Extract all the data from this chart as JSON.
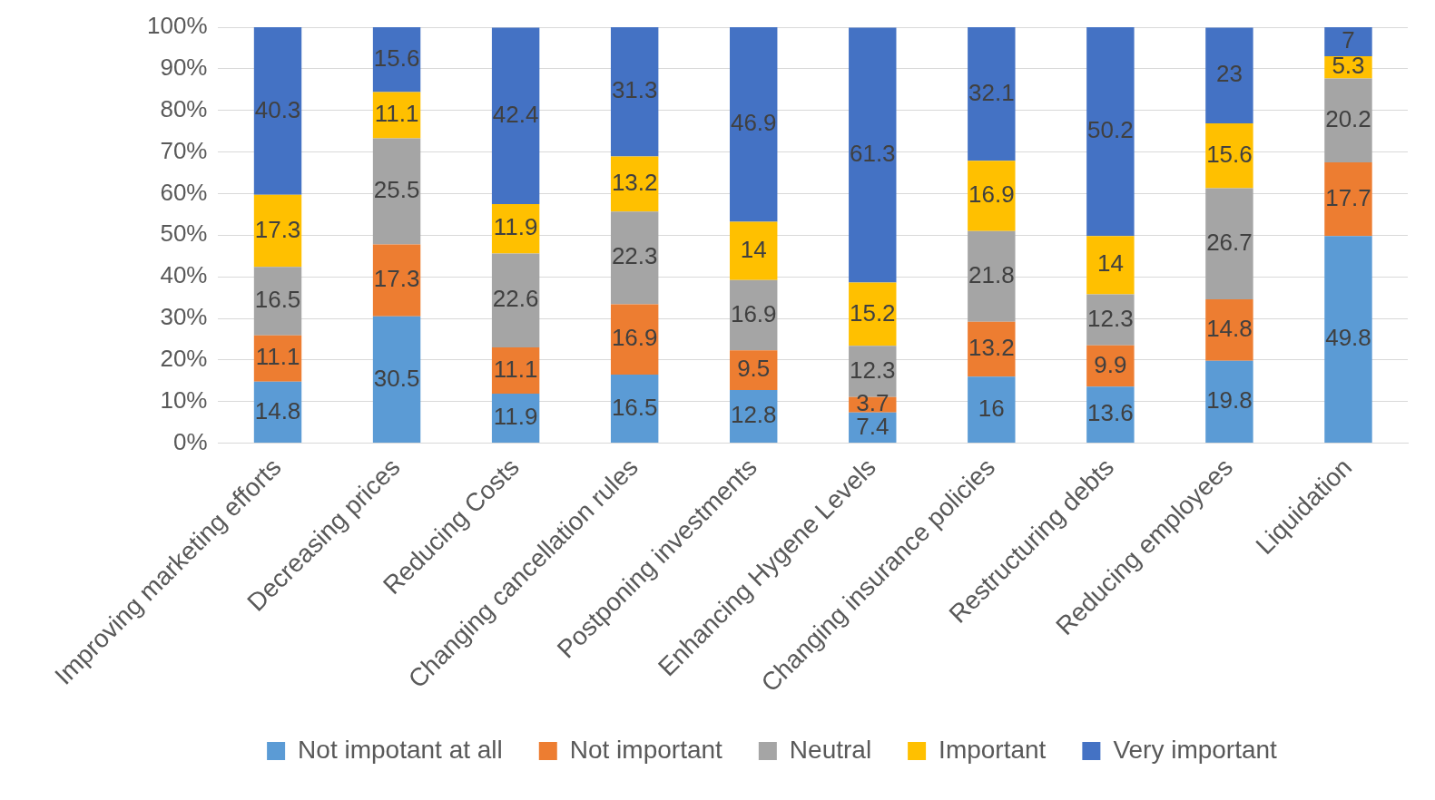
{
  "chart_data": {
    "type": "bar",
    "stacked": true,
    "categories": [
      "Improving marketing efforts",
      "Decreasing prices",
      "Reducing Costs",
      "Changing cancellation rules",
      "Postponing investments",
      "Enhancing Hygene Levels",
      "Changing insurance policies",
      "Restructuring debts",
      "Reducing employees",
      "Liquidation"
    ],
    "series": [
      {
        "name": "Not impotant at all",
        "color": "#5b9bd5",
        "values": [
          14.8,
          30.5,
          11.9,
          16.5,
          12.8,
          7.4,
          16,
          13.6,
          19.8,
          49.8
        ]
      },
      {
        "name": "Not important",
        "color": "#ed7d31",
        "values": [
          11.1,
          17.3,
          11.1,
          16.9,
          9.5,
          3.7,
          13.2,
          9.9,
          14.8,
          17.7
        ]
      },
      {
        "name": "Neutral",
        "color": "#a5a5a5",
        "values": [
          16.5,
          25.5,
          22.6,
          22.3,
          16.9,
          12.3,
          21.8,
          12.3,
          26.7,
          20.2
        ]
      },
      {
        "name": "Important",
        "color": "#ffc000",
        "values": [
          17.3,
          11.1,
          11.9,
          13.2,
          14,
          15.2,
          16.9,
          14,
          15.6,
          5.3
        ]
      },
      {
        "name": "Very important",
        "color": "#4472c4",
        "values": [
          40.3,
          15.6,
          42.4,
          31.3,
          46.9,
          61.3,
          32.1,
          50.2,
          23,
          7
        ]
      }
    ],
    "ylim": [
      0,
      100
    ],
    "yticks": [
      {
        "value": 0,
        "label": "0%"
      },
      {
        "value": 10,
        "label": "10%"
      },
      {
        "value": 20,
        "label": "20%"
      },
      {
        "value": 30,
        "label": "30%"
      },
      {
        "value": 40,
        "label": "40%"
      },
      {
        "value": 50,
        "label": "50%"
      },
      {
        "value": 60,
        "label": "60%"
      },
      {
        "value": 70,
        "label": "70%"
      },
      {
        "value": 80,
        "label": "80%"
      },
      {
        "value": 90,
        "label": "90%"
      },
      {
        "value": 100,
        "label": "100%"
      }
    ],
    "grid": "y",
    "legend": "bottom",
    "data_labels": true
  }
}
